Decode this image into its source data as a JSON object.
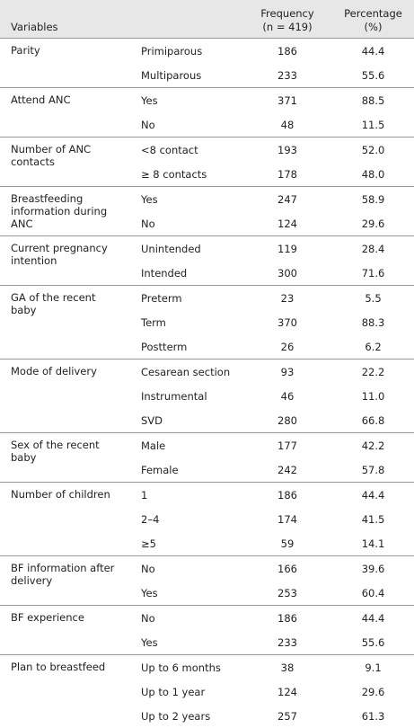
{
  "table": {
    "header": {
      "variables": "Variables",
      "frequency": [
        "Frequency",
        "(n = 419)"
      ],
      "percentage": [
        "Percentage",
        "(%)"
      ]
    },
    "groups": [
      {
        "variable": "Parity",
        "rows": [
          [
            "Primiparous",
            "186",
            "44.4"
          ],
          [
            "Multiparous",
            "233",
            "55.6"
          ]
        ]
      },
      {
        "variable": "Attend ANC",
        "rows": [
          [
            "Yes",
            "371",
            "88.5"
          ],
          [
            "No",
            "48",
            "11.5"
          ]
        ]
      },
      {
        "variable": "Number of ANC contacts",
        "rows": [
          [
            "<8 contact",
            "193",
            "52.0"
          ],
          [
            "≥ 8 contacts",
            "178",
            "48.0"
          ]
        ]
      },
      {
        "variable": "Breastfeeding information during ANC",
        "rows": [
          [
            "Yes",
            "247",
            "58.9"
          ],
          [
            "No",
            "124",
            "29.6"
          ]
        ]
      },
      {
        "variable": "Current pregnancy intention",
        "rows": [
          [
            "Unintended",
            "119",
            "28.4"
          ],
          [
            "Intended",
            "300",
            "71.6"
          ]
        ]
      },
      {
        "variable": "GA of the recent baby",
        "rows": [
          [
            "Preterm",
            "23",
            "5.5"
          ],
          [
            "Term",
            "370",
            "88.3"
          ],
          [
            "Postterm",
            "26",
            "6.2"
          ]
        ]
      },
      {
        "variable": "Mode of delivery",
        "rows": [
          [
            "Cesarean section",
            "93",
            "22.2"
          ],
          [
            "Instrumental",
            "46",
            "11.0"
          ],
          [
            "SVD",
            "280",
            "66.8"
          ]
        ]
      },
      {
        "variable": "Sex of the recent baby",
        "rows": [
          [
            "Male",
            "177",
            "42.2"
          ],
          [
            "Female",
            "242",
            "57.8"
          ]
        ]
      },
      {
        "variable": "Number of children",
        "rows": [
          [
            "1",
            "186",
            "44.4"
          ],
          [
            "2–4",
            "174",
            "41.5"
          ],
          [
            "≥5",
            "59",
            "14.1"
          ]
        ]
      },
      {
        "variable": "BF information after delivery",
        "rows": [
          [
            "No",
            "166",
            "39.6"
          ],
          [
            "Yes",
            "253",
            "60.4"
          ]
        ]
      },
      {
        "variable": "BF experience",
        "rows": [
          [
            "No",
            "186",
            "44.4"
          ],
          [
            "Yes",
            "233",
            "55.6"
          ]
        ]
      },
      {
        "variable": "Plan to breastfeed",
        "rows": [
          [
            "Up to 6 months",
            "38",
            "9.1"
          ],
          [
            "Up to 1 year",
            "124",
            "29.6"
          ],
          [
            "Up to 2 years",
            "257",
            "61.3"
          ]
        ]
      }
    ]
  }
}
